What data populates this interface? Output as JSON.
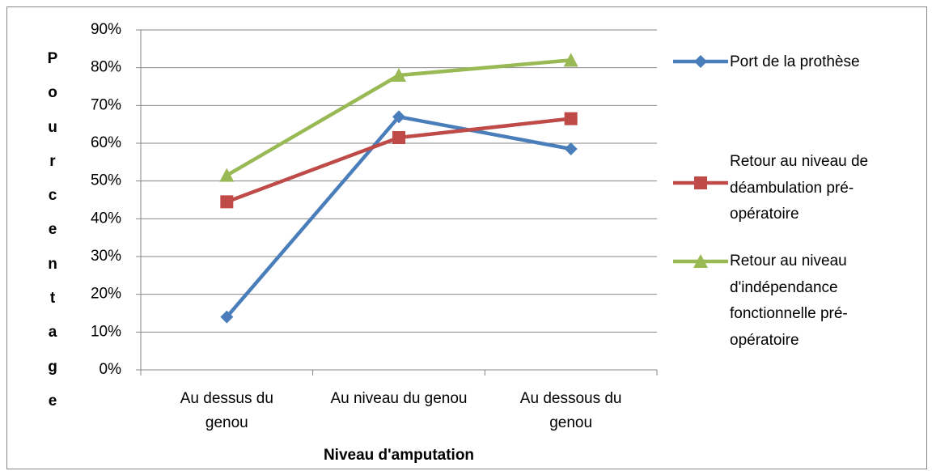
{
  "chart_data": {
    "type": "line",
    "x_label": "Niveau d'amputation",
    "y_label": "Pourcentage",
    "categories": [
      "Au dessus du genou",
      "Au niveau du genou",
      "Au dessous du genou"
    ],
    "series": [
      {
        "name": "Port de la prothèse",
        "color": "#4a7ebb",
        "marker": "diamond",
        "values": [
          14,
          67,
          58.5
        ]
      },
      {
        "name": "Retour au niveau de déambulation pré-opératoire",
        "color": "#be4b48",
        "marker": "square",
        "values": [
          44.5,
          61.5,
          66.5
        ]
      },
      {
        "name": "Retour au niveau d'indépendance fonctionnelle pré-opératoire",
        "color": "#98b954",
        "marker": "triangle",
        "values": [
          51.5,
          78,
          82
        ]
      }
    ],
    "ylim": [
      0,
      90
    ],
    "yticks": [
      {
        "value": 0,
        "label": "0%"
      },
      {
        "value": 10,
        "label": "10%"
      },
      {
        "value": 20,
        "label": "20%"
      },
      {
        "value": 30,
        "label": "30%"
      },
      {
        "value": 40,
        "label": "40%"
      },
      {
        "value": 50,
        "label": "50%"
      },
      {
        "value": 60,
        "label": "60%"
      },
      {
        "value": 70,
        "label": "70%"
      },
      {
        "value": 80,
        "label": "80%"
      },
      {
        "value": 90,
        "label": "90%"
      }
    ],
    "grid": true,
    "legend": "right"
  }
}
